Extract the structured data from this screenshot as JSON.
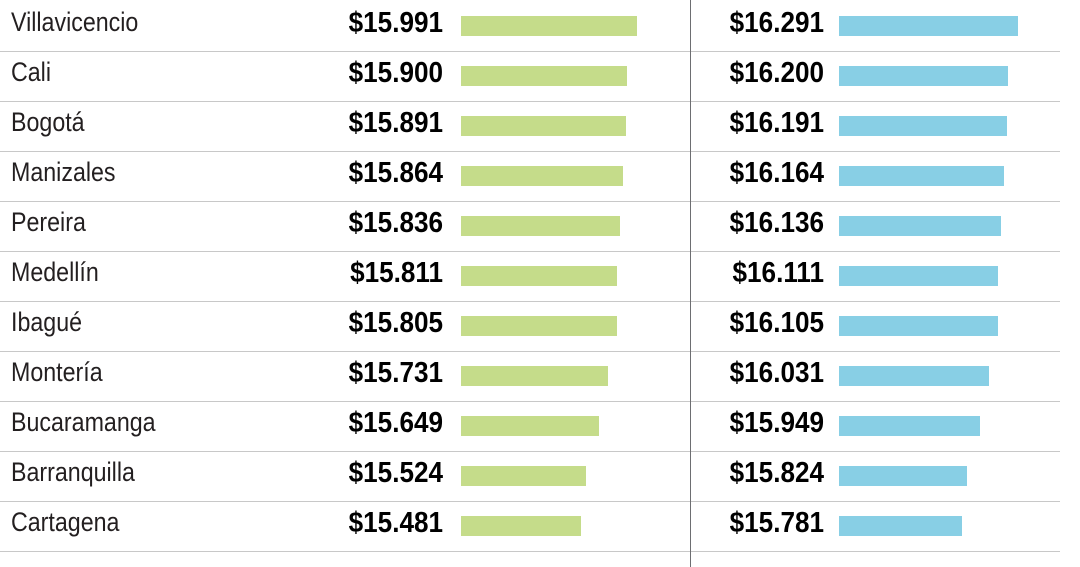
{
  "chart_data": {
    "type": "bar",
    "orientation": "horizontal",
    "categories": [
      "Villavicencio",
      "Cali",
      "Bogotá",
      "Manizales",
      "Pereira",
      "Medellín",
      "Ibagué",
      "Montería",
      "Bucaramanga",
      "Barranquilla",
      "Cartagena"
    ],
    "series": [
      {
        "values": [
          15.991,
          15.9,
          15.891,
          15.864,
          15.836,
          15.811,
          15.805,
          15.731,
          15.649,
          15.524,
          15.481
        ],
        "labels": [
          "$15.991",
          "$15.900",
          "$15.891",
          "$15.864",
          "$15.836",
          "$15.811",
          "$15.805",
          "$15.731",
          "$15.649",
          "$15.524",
          "$15.481"
        ],
        "color": "#c5dc8a"
      },
      {
        "values": [
          16.291,
          16.2,
          16.191,
          16.164,
          16.136,
          16.111,
          16.105,
          16.031,
          15.949,
          15.824,
          15.781
        ],
        "labels": [
          "$16.291",
          "$16.200",
          "$16.191",
          "$16.164",
          "$16.136",
          "$16.111",
          "$16.105",
          "$16.031",
          "$15.949",
          "$15.824",
          "$15.781"
        ],
        "color": "#88cfe5"
      }
    ],
    "title": "",
    "xlabel": "",
    "ylabel": "",
    "grid": false
  },
  "colors": {
    "divider": "#6d6e71",
    "row_border": "#c8c8c8",
    "text": "#231f20"
  }
}
